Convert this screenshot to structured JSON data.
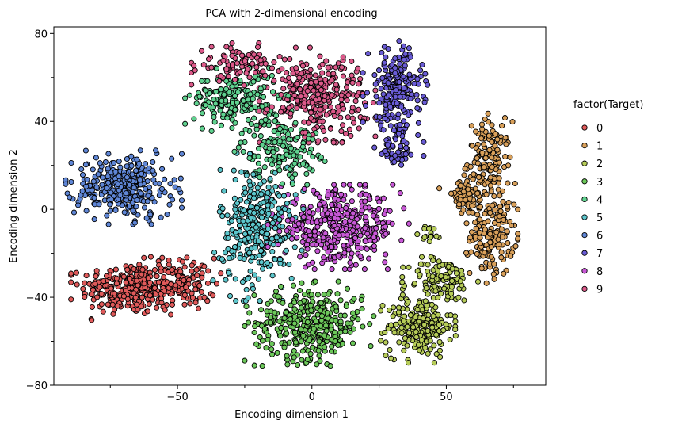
{
  "chart_data": {
    "type": "scatter",
    "title": "PCA with 2-dimensional encoding",
    "xlabel": "Encoding dimension 1",
    "ylabel": "Encoding dimension 2",
    "xlim": [
      -96,
      87
    ],
    "ylim": [
      -80,
      83
    ],
    "xticks": [
      -50,
      0,
      50
    ],
    "xtick_labels": [
      "−50",
      "0",
      "50"
    ],
    "yticks": [
      -80,
      -40,
      0,
      40,
      80
    ],
    "ytick_labels": [
      "−80",
      "−40",
      "0",
      "40",
      "80"
    ],
    "grid": false,
    "legend": {
      "title": "factor(Target)",
      "placement": "right",
      "entries": [
        "0",
        "1",
        "2",
        "3",
        "4",
        "5",
        "6",
        "7",
        "8",
        "9"
      ]
    },
    "series": [
      {
        "name": "0",
        "color": "#e05a5a",
        "clusters": [
          {
            "cx": -68,
            "cy": -36,
            "sx": 9,
            "sy": 6,
            "n": 260
          },
          {
            "cx": -48,
            "cy": -34,
            "sx": 6,
            "sy": 6,
            "n": 120
          }
        ]
      },
      {
        "name": "1",
        "color": "#d9a05a",
        "clusters": [
          {
            "cx": 66,
            "cy": 22,
            "sx": 4,
            "sy": 9,
            "n": 150
          },
          {
            "cx": 67,
            "cy": -12,
            "sx": 4,
            "sy": 9,
            "n": 150
          },
          {
            "cx": 57,
            "cy": 5,
            "sx": 4,
            "sy": 4,
            "n": 60
          }
        ]
      },
      {
        "name": "2",
        "color": "#b6cc58",
        "clusters": [
          {
            "cx": 40,
            "cy": -53,
            "sx": 6,
            "sy": 7,
            "n": 220
          },
          {
            "cx": 48,
            "cy": -32,
            "sx": 6,
            "sy": 5,
            "n": 110
          },
          {
            "cx": 44,
            "cy": -11,
            "sx": 2,
            "sy": 2,
            "n": 15
          }
        ]
      },
      {
        "name": "3",
        "color": "#6cc85a",
        "clusters": [
          {
            "cx": -1,
            "cy": -52,
            "sx": 10,
            "sy": 8,
            "n": 380
          }
        ]
      },
      {
        "name": "4",
        "color": "#5fd28f",
        "clusters": [
          {
            "cx": -28,
            "cy": 50,
            "sx": 8,
            "sy": 6,
            "n": 200
          },
          {
            "cx": -12,
            "cy": 28,
            "sx": 7,
            "sy": 7,
            "n": 160
          }
        ]
      },
      {
        "name": "5",
        "color": "#5cc6cc",
        "clusters": [
          {
            "cx": -20,
            "cy": -8,
            "sx": 7,
            "sy": 14,
            "n": 320
          }
        ]
      },
      {
        "name": "6",
        "color": "#5f86d6",
        "clusters": [
          {
            "cx": -70,
            "cy": 10,
            "sx": 9,
            "sy": 7,
            "n": 320
          }
        ]
      },
      {
        "name": "7",
        "color": "#6a5cd6",
        "clusters": [
          {
            "cx": 31,
            "cy": 55,
            "sx": 5,
            "sy": 9,
            "n": 220
          },
          {
            "cx": 32,
            "cy": 28,
            "sx": 4,
            "sy": 5,
            "n": 60
          }
        ]
      },
      {
        "name": "8",
        "color": "#c858d6",
        "clusters": [
          {
            "cx": 10,
            "cy": -8,
            "sx": 11,
            "sy": 8,
            "n": 400
          }
        ]
      },
      {
        "name": "9",
        "color": "#dc5a8a",
        "clusters": [
          {
            "cx": -28,
            "cy": 66,
            "sx": 7,
            "sy": 4,
            "n": 90
          },
          {
            "cx": 2,
            "cy": 52,
            "sx": 9,
            "sy": 9,
            "n": 300
          }
        ]
      }
    ]
  }
}
